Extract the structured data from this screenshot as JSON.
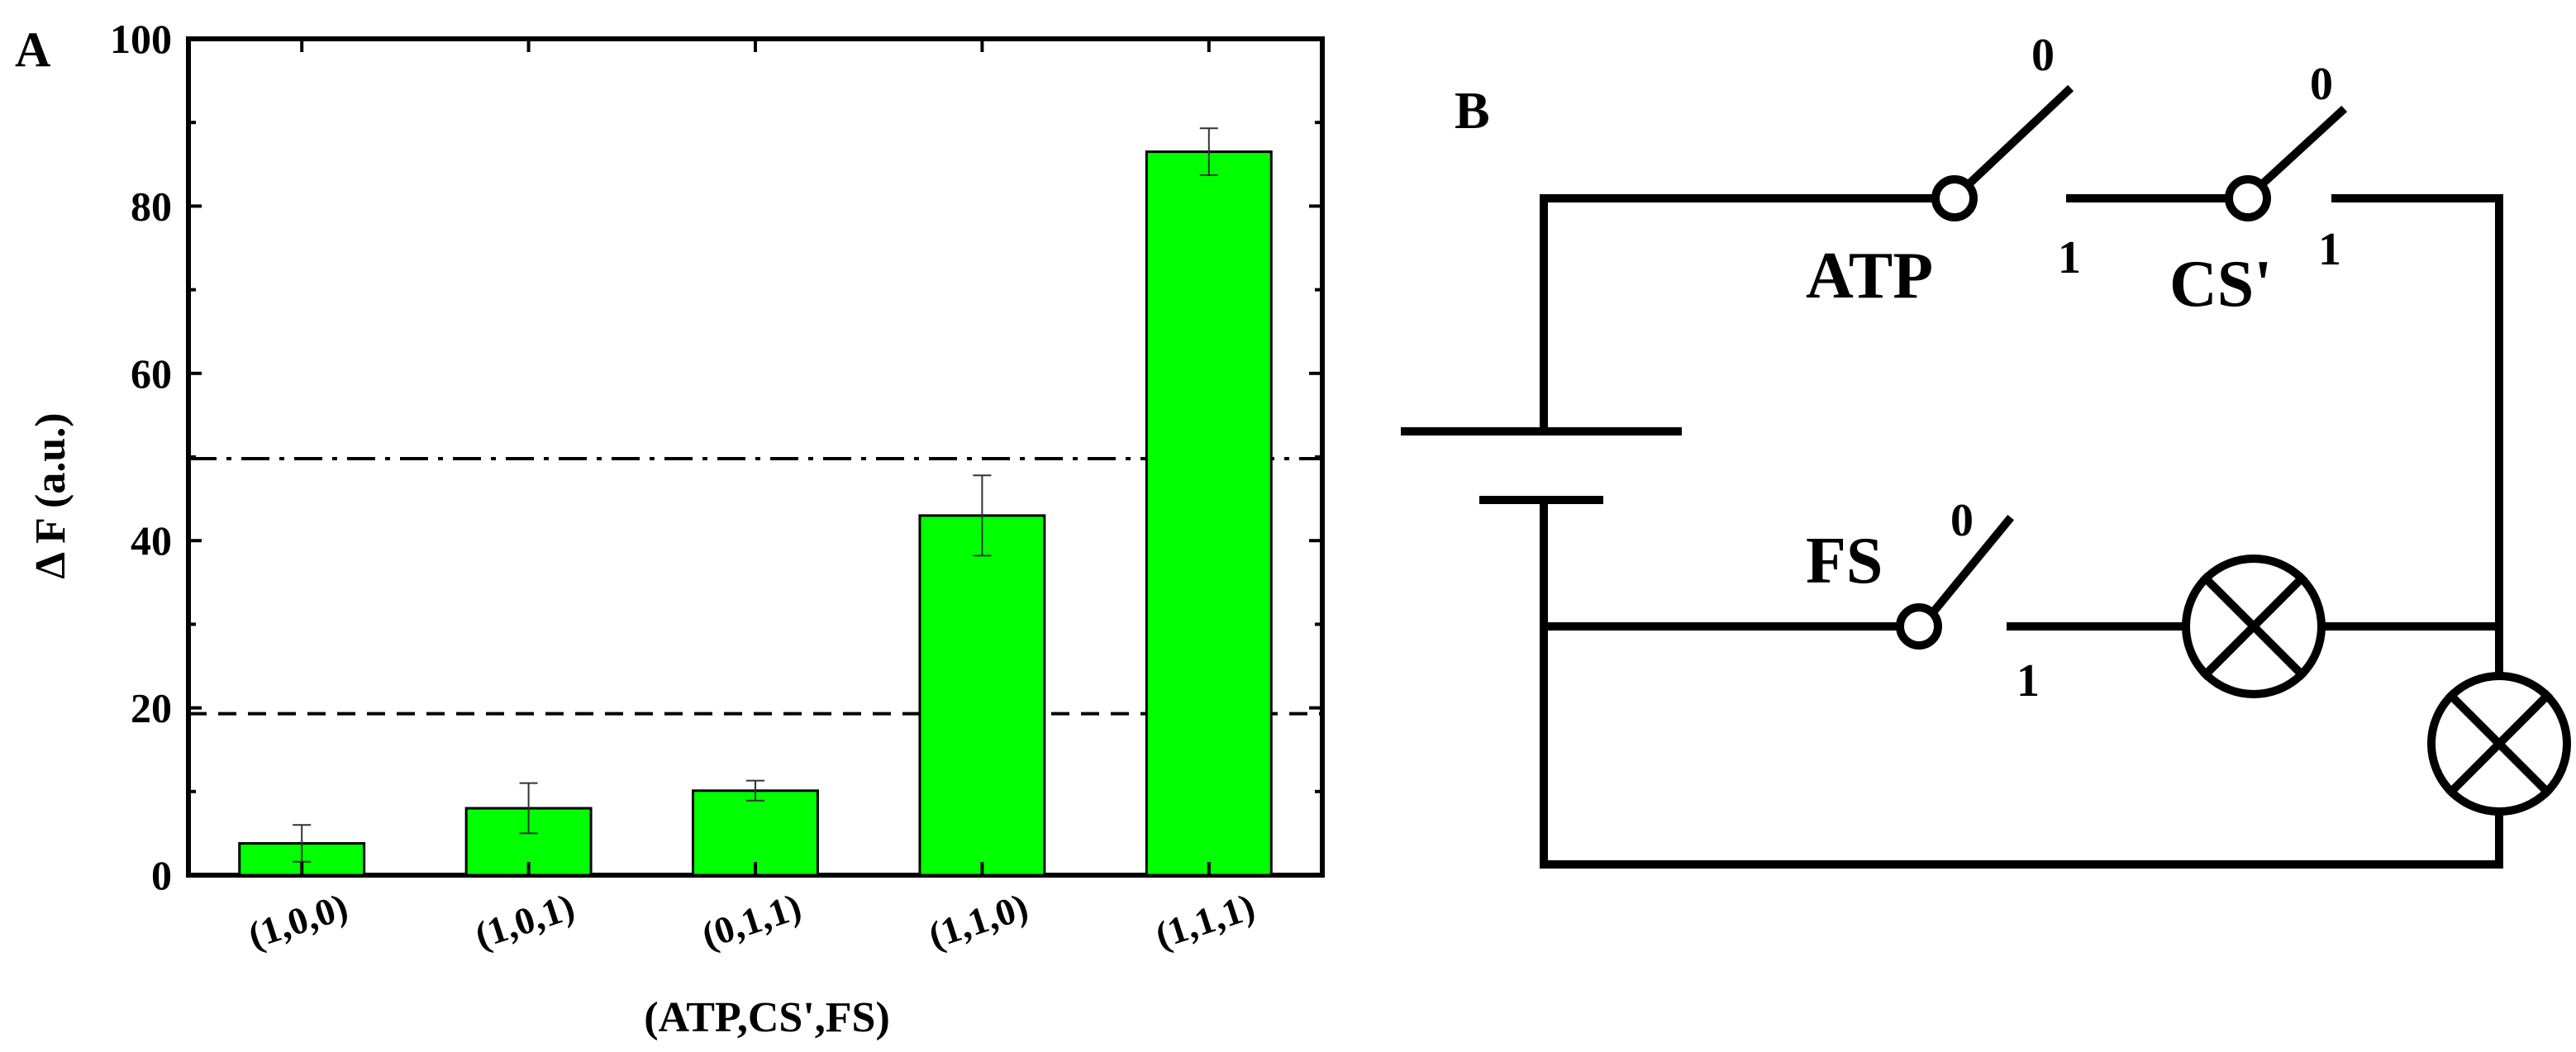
{
  "panel_a": {
    "label": "A"
  },
  "panel_b": {
    "label": "B",
    "switch_atp": {
      "name": "ATP",
      "state_0": "0",
      "state_1": "1"
    },
    "switch_cs": {
      "name": "CS'",
      "state_0": "0",
      "state_1": "1"
    },
    "switch_fs": {
      "name": "FS",
      "state_0": "0",
      "state_1": "1"
    }
  },
  "chart_data": {
    "type": "bar",
    "title": "",
    "xlabel": "(ATP,CS',FS)",
    "ylabel": "Δ F (a.u.)",
    "ylim": [
      0,
      100
    ],
    "yticks": [
      "0",
      "20",
      "40",
      "60",
      "80",
      "100"
    ],
    "categories": [
      "(1,0,0)",
      "(1,0,1)",
      "(0,1,1)",
      "(1,1,0)",
      "(1,1,1)"
    ],
    "values": [
      3.8,
      8.0,
      10.1,
      43.0,
      86.5
    ],
    "errors": [
      2.2,
      3.0,
      1.2,
      4.8,
      2.8
    ],
    "bar_color": "#00ff00",
    "threshold_lines": [
      {
        "value": 19.3,
        "style": "dashed"
      },
      {
        "value": 49.8,
        "style": "dash-dot"
      }
    ],
    "grid": false,
    "legend": "none"
  }
}
